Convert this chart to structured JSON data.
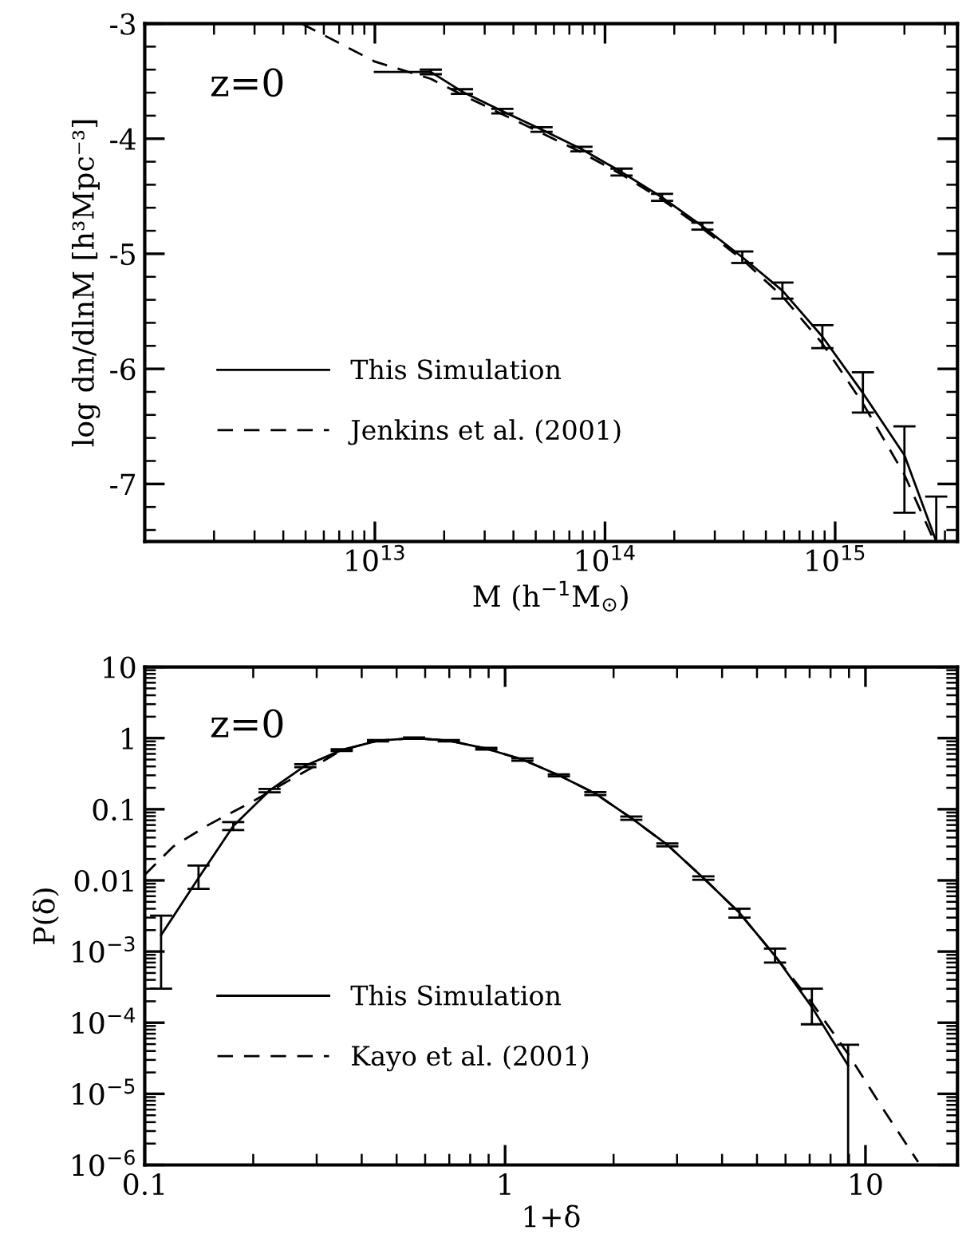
{
  "chart_data": [
    {
      "type": "line",
      "xlabel": "M (h$^{−1}$M$_{⊙}$)",
      "ylabel": "log dn/dlnM [h³Mpc⁻³]",
      "annotations": [
        "z=0"
      ],
      "log": "x",
      "xlim": [
        1000000000000.0,
        3400000000000000.0
      ],
      "ylim": [
        -7.5,
        -3
      ],
      "xticks": [
        {
          "value": 10000000000000.0,
          "label": "10$^{13}$"
        },
        {
          "value": 100000000000000.0,
          "label": "10$^{14}$"
        },
        {
          "value": 1000000000000000.0,
          "label": "10$^{15}$"
        }
      ],
      "yticks": [
        -3,
        -4,
        -5,
        -6,
        -7
      ],
      "grid": false,
      "legend": "bottom left",
      "marker": "none",
      "series": [
        {
          "name": "This Simulation",
          "color": "#000000",
          "line_style": "solid",
          "x": [
            10000000000000.0,
            17500000000000.0,
            23900000000000.0,
            35800000000000.0,
            53000000000000.0,
            79000000000000.0,
            118000000000000.0,
            177000000000000.0,
            265000000000000.0,
            395000000000000.0,
            590000000000000.0,
            880000000000000.0,
            1320000000000000.0,
            2000000000000000.0,
            2750000000000000.0
          ],
          "values": [
            -3.42,
            -3.42,
            -3.59,
            -3.76,
            -3.92,
            -4.09,
            -4.29,
            -4.51,
            -4.76,
            -5.03,
            -5.32,
            -5.72,
            -6.21,
            -6.75,
            -7.5
          ],
          "errors": [
            null,
            0.02,
            0.02,
            0.02,
            0.02,
            0.02,
            0.03,
            0.03,
            0.03,
            0.05,
            0.07,
            0.1,
            [
              -6.38,
              -6.03
            ],
            [
              -7.25,
              -6.5
            ],
            [
              -7.5,
              -7.11
            ]
          ]
        },
        {
          "name": "Jenkins et al. (2001)",
          "color": "#000000",
          "line_style": "dashed",
          "x": [
            4800000000000.0,
            10000000000000.0,
            17500000000000.0,
            24000000000000.0,
            36000000000000.0,
            53000000000000.0,
            79000000000000.0,
            118000000000000.0,
            177000000000000.0,
            265000000000000.0,
            395000000000000.0,
            590000000000000.0,
            880000000000000.0,
            1320000000000000.0,
            2000000000000000.0,
            2700000000000000.0
          ],
          "values": [
            -3.0,
            -3.33,
            -3.48,
            -3.62,
            -3.79,
            -3.95,
            -4.12,
            -4.31,
            -4.53,
            -4.78,
            -5.05,
            -5.37,
            -5.78,
            -6.3,
            -6.92,
            -7.5
          ]
        }
      ]
    },
    {
      "type": "line",
      "xlabel": "1+δ",
      "ylabel": "P(δ)",
      "annotations": [
        "z=0"
      ],
      "log": "xy",
      "xlim": [
        0.1,
        18
      ],
      "ylim": [
        1e-06,
        10
      ],
      "xticks": [
        0.1,
        1,
        10
      ],
      "yticks": [
        10,
        1,
        0.1,
        0.01,
        {
          "value": 0.001,
          "label": "10$^{−3}$"
        },
        {
          "value": 0.0001,
          "label": "10$^{−4}$"
        },
        {
          "value": 1e-05,
          "label": "10$^{−5}$"
        },
        {
          "value": 1e-06,
          "label": "10$^{−6}$"
        }
      ],
      "grid": false,
      "legend": "bottom left",
      "marker": "none",
      "series": [
        {
          "name": "This Simulation",
          "color": "#000000",
          "line_style": "solid",
          "x": [
            0.111,
            0.141,
            0.176,
            0.222,
            0.279,
            0.352,
            0.444,
            0.559,
            0.698,
            0.887,
            1.117,
            1.41,
            1.78,
            2.24,
            2.82,
            3.55,
            4.47,
            5.61,
            7.1,
            8.95
          ],
          "values": [
            0.0017,
            0.0108,
            0.058,
            0.183,
            0.41,
            0.68,
            0.92,
            1.0,
            0.92,
            0.71,
            0.5,
            0.3,
            0.166,
            0.075,
            0.0316,
            0.0108,
            0.0035,
            0.00087,
            0.000166,
            2.5e-05
          ],
          "errors": [
            [
              0.0003,
              0.0032
            ],
            [
              0.0076,
              0.0162
            ],
            [
              0.051,
              0.066
            ],
            0.01,
            0.02,
            0.02,
            0.02,
            0.02,
            0.02,
            0.02,
            0.02,
            0.01,
            0.008,
            0.004,
            0.0015,
            0.0006,
            0.0005,
            [
              0.0007,
              0.0011
            ],
            [
              9.5e-05,
              0.0003
            ],
            [
              1e-06,
              4.9e-05
            ]
          ]
        },
        {
          "name": "Kayo et al. (2001)",
          "color": "#000000",
          "line_style": "dashed",
          "x": [
            0.1,
            0.12,
            0.15,
            0.2,
            0.25,
            0.3,
            0.352,
            0.444,
            0.559,
            0.698,
            0.887,
            1.117,
            1.41,
            1.78,
            2.24,
            2.82,
            3.55,
            4.47,
            5.61,
            7.1,
            9.0,
            11.0,
            14.0
          ],
          "values": [
            0.012,
            0.03,
            0.06,
            0.13,
            0.25,
            0.42,
            0.68,
            0.92,
            1.0,
            0.92,
            0.71,
            0.5,
            0.3,
            0.166,
            0.075,
            0.0316,
            0.0108,
            0.0035,
            0.00087,
            0.00019,
            3.5e-05,
            7e-06,
            1.1e-06
          ]
        }
      ]
    }
  ]
}
